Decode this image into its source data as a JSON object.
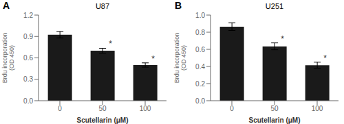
{
  "chart_data": [
    {
      "type": "bar",
      "label": "A",
      "title": "U87",
      "categories": [
        "0",
        "50",
        "100"
      ],
      "values": [
        0.925,
        0.7,
        0.5
      ],
      "errors": [
        0.045,
        0.035,
        0.03
      ],
      "ylim": [
        0,
        1.2
      ],
      "yticks": [
        {
          "value": 0,
          "label": "0.0"
        },
        0.3,
        0.6,
        0.9,
        1.2
      ],
      "annotations": [
        {
          "category": "50",
          "text": "*"
        },
        {
          "category": "100",
          "text": "*"
        }
      ],
      "xlabel": "Scutellarin (μM)",
      "ylabel": "Brdu incorporation\n(OD 450)",
      "color": "#1a1a1a",
      "grid": false
    },
    {
      "type": "bar",
      "label": "B",
      "title": "U251",
      "categories": [
        "0",
        "50",
        "100"
      ],
      "values": [
        0.865,
        0.635,
        0.415
      ],
      "errors": [
        0.045,
        0.04,
        0.035
      ],
      "ylim": [
        0,
        1.0
      ],
      "yticks": [
        {
          "value": 0,
          "label": "0.0"
        },
        0.2,
        0.4,
        0.6,
        0.8,
        {
          "value": 1.0,
          "label": "1.0"
        }
      ],
      "annotations": [
        {
          "category": "50",
          "text": "*"
        },
        {
          "category": "100",
          "text": "*"
        }
      ],
      "xlabel": "Scutellarin (μM)",
      "ylabel": "Brdu incorporation\n(OD 450)",
      "color": "#1a1a1a",
      "grid": false
    }
  ]
}
